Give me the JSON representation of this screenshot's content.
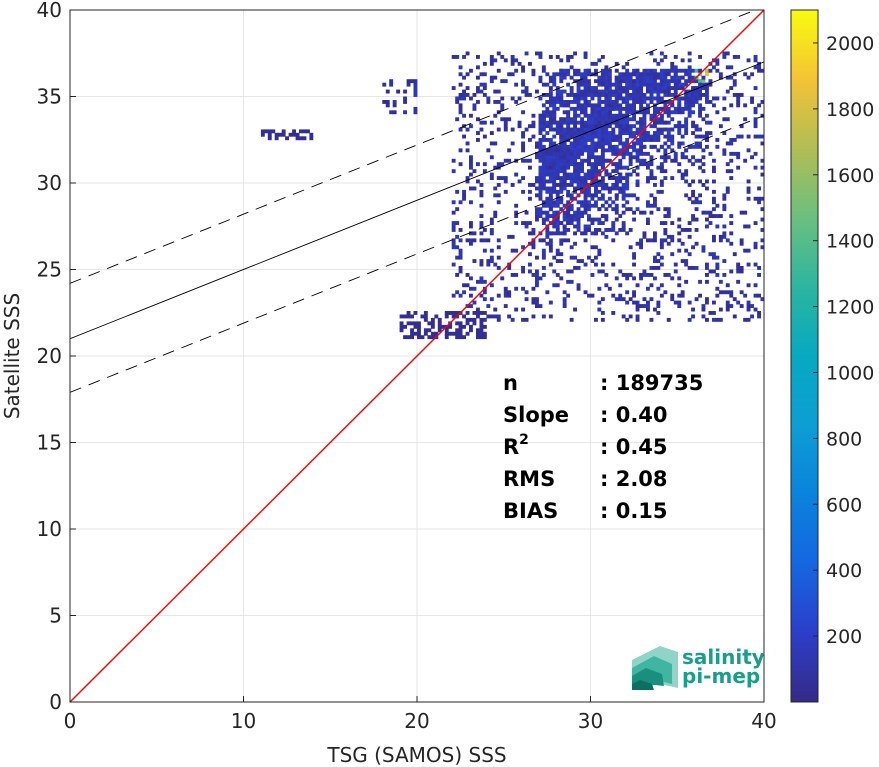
{
  "chart_data": {
    "type": "heatmap",
    "title": "",
    "xlabel": "TSG (SAMOS) SSS",
    "ylabel": "Satellite SSS",
    "xlim": [
      0,
      40
    ],
    "ylim": [
      0,
      40
    ],
    "xticks": [
      0,
      10,
      20,
      30,
      40
    ],
    "yticks": [
      0,
      5,
      10,
      15,
      20,
      25,
      30,
      35,
      40
    ],
    "grid": true,
    "colormap": "parula",
    "colorbar": {
      "range": [
        0,
        2100
      ],
      "ticks": [
        200,
        400,
        600,
        800,
        1000,
        1200,
        1400,
        1600,
        1800,
        2000
      ]
    },
    "lines": [
      {
        "role": "identity",
        "color": "#ff0000",
        "style": "solid",
        "x": [
          0,
          40
        ],
        "y": [
          0,
          40
        ]
      },
      {
        "role": "regression",
        "color": "#000000",
        "style": "solid",
        "x": [
          0,
          40
        ],
        "y": [
          21.0,
          37.0
        ]
      },
      {
        "role": "regression-upper",
        "color": "#000000",
        "style": "dashed",
        "x": [
          0,
          40
        ],
        "y": [
          24.2,
          40.2
        ]
      },
      {
        "role": "regression-lower",
        "color": "#000000",
        "style": "dashed",
        "x": [
          0,
          40
        ],
        "y": [
          17.9,
          33.9
        ]
      }
    ],
    "density_regions": [
      {
        "x": [
          27,
          36.8
        ],
        "y": [
          27,
          36.5
        ],
        "density": "high",
        "peak": [
          36.5,
          36.2
        ]
      },
      {
        "x": [
          22,
          40
        ],
        "y": [
          22,
          37.5
        ],
        "density": "low"
      },
      {
        "x": [
          18,
          20
        ],
        "y": [
          34,
          36
        ],
        "density": "low"
      },
      {
        "x": [
          11,
          14
        ],
        "y": [
          32.5,
          33
        ],
        "density": "sparse"
      },
      {
        "x": [
          19,
          24
        ],
        "y": [
          21,
          22.5
        ],
        "density": "sparse"
      }
    ],
    "stats": [
      {
        "label": "n",
        "value": ": 189735"
      },
      {
        "label": "Slope",
        "value": ": 0.40"
      },
      {
        "label": "R",
        "sup": "2",
        "value": ": 0.45"
      },
      {
        "label": "RMS",
        "value": ": 2.08"
      },
      {
        "label": "BIAS",
        "value": ": 0.15"
      }
    ]
  },
  "logo": {
    "line1": "salinity",
    "line2": "pi-mep"
  }
}
